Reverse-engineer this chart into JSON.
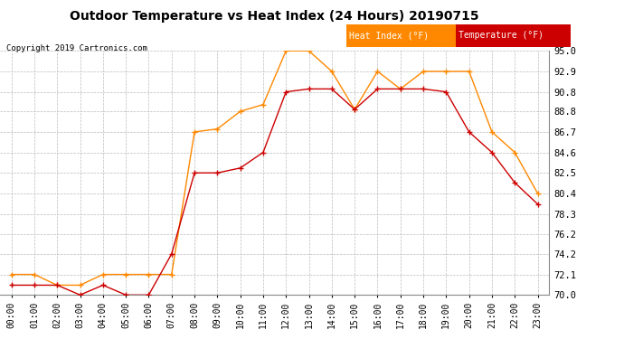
{
  "title": "Outdoor Temperature vs Heat Index (24 Hours) 20190715",
  "copyright": "Copyright 2019 Cartronics.com",
  "hours": [
    "00:00",
    "01:00",
    "02:00",
    "03:00",
    "04:00",
    "05:00",
    "06:00",
    "07:00",
    "08:00",
    "09:00",
    "10:00",
    "11:00",
    "12:00",
    "13:00",
    "14:00",
    "15:00",
    "16:00",
    "17:00",
    "18:00",
    "19:00",
    "20:00",
    "21:00",
    "22:00",
    "23:00"
  ],
  "temperature": [
    71.0,
    71.0,
    71.0,
    70.0,
    71.0,
    70.0,
    70.0,
    74.2,
    82.5,
    82.5,
    83.0,
    84.6,
    90.8,
    91.1,
    91.1,
    89.0,
    91.1,
    91.1,
    91.1,
    90.8,
    86.7,
    84.6,
    81.5,
    79.3
  ],
  "heat_index": [
    72.1,
    72.1,
    71.0,
    71.0,
    72.1,
    72.1,
    72.1,
    72.1,
    86.7,
    87.0,
    88.8,
    89.5,
    95.0,
    95.0,
    92.9,
    89.0,
    92.9,
    91.1,
    92.9,
    92.9,
    92.9,
    86.7,
    84.6,
    80.4
  ],
  "temp_color": "#cc0000",
  "heat_color": "#ff8800",
  "ylim_min": 70.0,
  "ylim_max": 95.0,
  "yticks": [
    70.0,
    72.1,
    74.2,
    76.2,
    78.3,
    80.4,
    82.5,
    84.6,
    86.7,
    88.8,
    90.8,
    92.9,
    95.0
  ],
  "background_color": "#ffffff",
  "grid_color": "#bbbbbb",
  "legend_heat_bg": "#ff8800",
  "legend_temp_bg": "#cc0000",
  "legend_text_color": "#ffffff"
}
